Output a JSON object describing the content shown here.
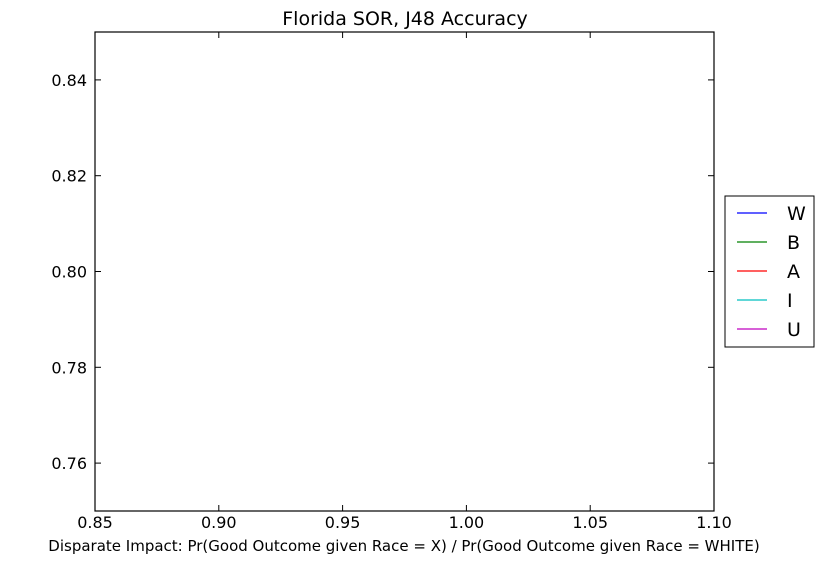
{
  "chart_data": {
    "type": "line",
    "title": "Florida SOR, J48 Accuracy",
    "xlabel": "Disparate Impact: Pr(Good Outcome given Race = X) / Pr(Good Outcome given Race = WHITE)",
    "ylabel": "",
    "xlim": [
      0.85,
      1.1
    ],
    "ylim": [
      0.75,
      0.85
    ],
    "x_ticks": [
      "0.85",
      "0.90",
      "0.95",
      "1.00",
      "1.05",
      "1.10"
    ],
    "x_tick_values": [
      0.85,
      0.9,
      0.95,
      1.0,
      1.05,
      1.1
    ],
    "y_ticks": [
      "0.76",
      "0.78",
      "0.80",
      "0.82",
      "0.84"
    ],
    "y_tick_values": [
      0.76,
      0.78,
      0.8,
      0.82,
      0.84
    ],
    "grid": false,
    "legend_position": "right, outside plot",
    "series": [
      {
        "name": "W",
        "color": "#0000ff",
        "x": [],
        "y": []
      },
      {
        "name": "B",
        "color": "#008000",
        "x": [],
        "y": []
      },
      {
        "name": "A",
        "color": "#ff0000",
        "x": [],
        "y": []
      },
      {
        "name": "I",
        "color": "#00bfbf",
        "x": [],
        "y": []
      },
      {
        "name": "U",
        "color": "#bf00bf",
        "x": [],
        "y": []
      }
    ]
  }
}
